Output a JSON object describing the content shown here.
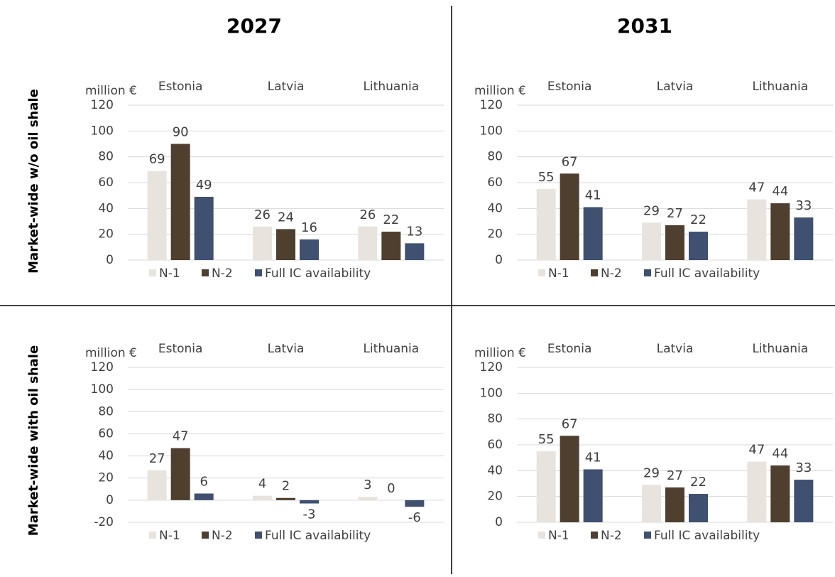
{
  "column_headers": [
    "2027",
    "2031"
  ],
  "row_headers": [
    "Market-wide w/o oil shale",
    "Market-wide with oil shale"
  ],
  "chart_data": [
    {
      "type": "bar",
      "y_label": "million €",
      "categories": [
        "Estonia",
        "Latvia",
        "Lithuania"
      ],
      "series": [
        {
          "name": "N-1",
          "color": "#e8e4dd",
          "values": [
            69,
            26,
            26
          ]
        },
        {
          "name": "N-2",
          "color": "#4f3f2e",
          "values": [
            90,
            24,
            22
          ]
        },
        {
          "name": "Full IC availability",
          "color": "#3f5070",
          "values": [
            49,
            16,
            13
          ]
        }
      ],
      "ylim": [
        0,
        120
      ],
      "yticks": [
        0,
        20,
        40,
        60,
        80,
        100,
        120
      ],
      "grid": true
    },
    {
      "type": "bar",
      "y_label": "million €",
      "categories": [
        "Estonia",
        "Latvia",
        "Lithuania"
      ],
      "series": [
        {
          "name": "N-1",
          "color": "#e8e4dd",
          "values": [
            55,
            29,
            47
          ]
        },
        {
          "name": "N-2",
          "color": "#4f3f2e",
          "values": [
            67,
            27,
            44
          ]
        },
        {
          "name": "Full IC availability",
          "color": "#3f5070",
          "values": [
            41,
            22,
            33
          ]
        }
      ],
      "ylim": [
        0,
        120
      ],
      "yticks": [
        0,
        20,
        40,
        60,
        80,
        100,
        120
      ],
      "grid": true
    },
    {
      "type": "bar",
      "y_label": "million €",
      "categories": [
        "Estonia",
        "Latvia",
        "Lithuania"
      ],
      "series": [
        {
          "name": "N-1",
          "color": "#e8e4dd",
          "values": [
            27,
            4,
            3
          ]
        },
        {
          "name": "N-2",
          "color": "#4f3f2e",
          "values": [
            47,
            2,
            0
          ]
        },
        {
          "name": "Full IC availability",
          "color": "#3f5070",
          "values": [
            6,
            -3,
            -6
          ]
        }
      ],
      "ylim": [
        -20,
        120
      ],
      "yticks": [
        -20,
        0,
        20,
        40,
        60,
        80,
        100,
        120
      ],
      "grid": true
    },
    {
      "type": "bar",
      "y_label": "million €",
      "categories": [
        "Estonia",
        "Latvia",
        "Lithuania"
      ],
      "series": [
        {
          "name": "N-1",
          "color": "#e8e4dd",
          "values": [
            55,
            29,
            47
          ]
        },
        {
          "name": "N-2",
          "color": "#4f3f2e",
          "values": [
            67,
            27,
            44
          ]
        },
        {
          "name": "Full IC availability",
          "color": "#3f5070",
          "values": [
            41,
            22,
            33
          ]
        }
      ],
      "ylim": [
        0,
        120
      ],
      "yticks": [
        0,
        20,
        40,
        60,
        80,
        100,
        120
      ],
      "grid": true
    }
  ]
}
